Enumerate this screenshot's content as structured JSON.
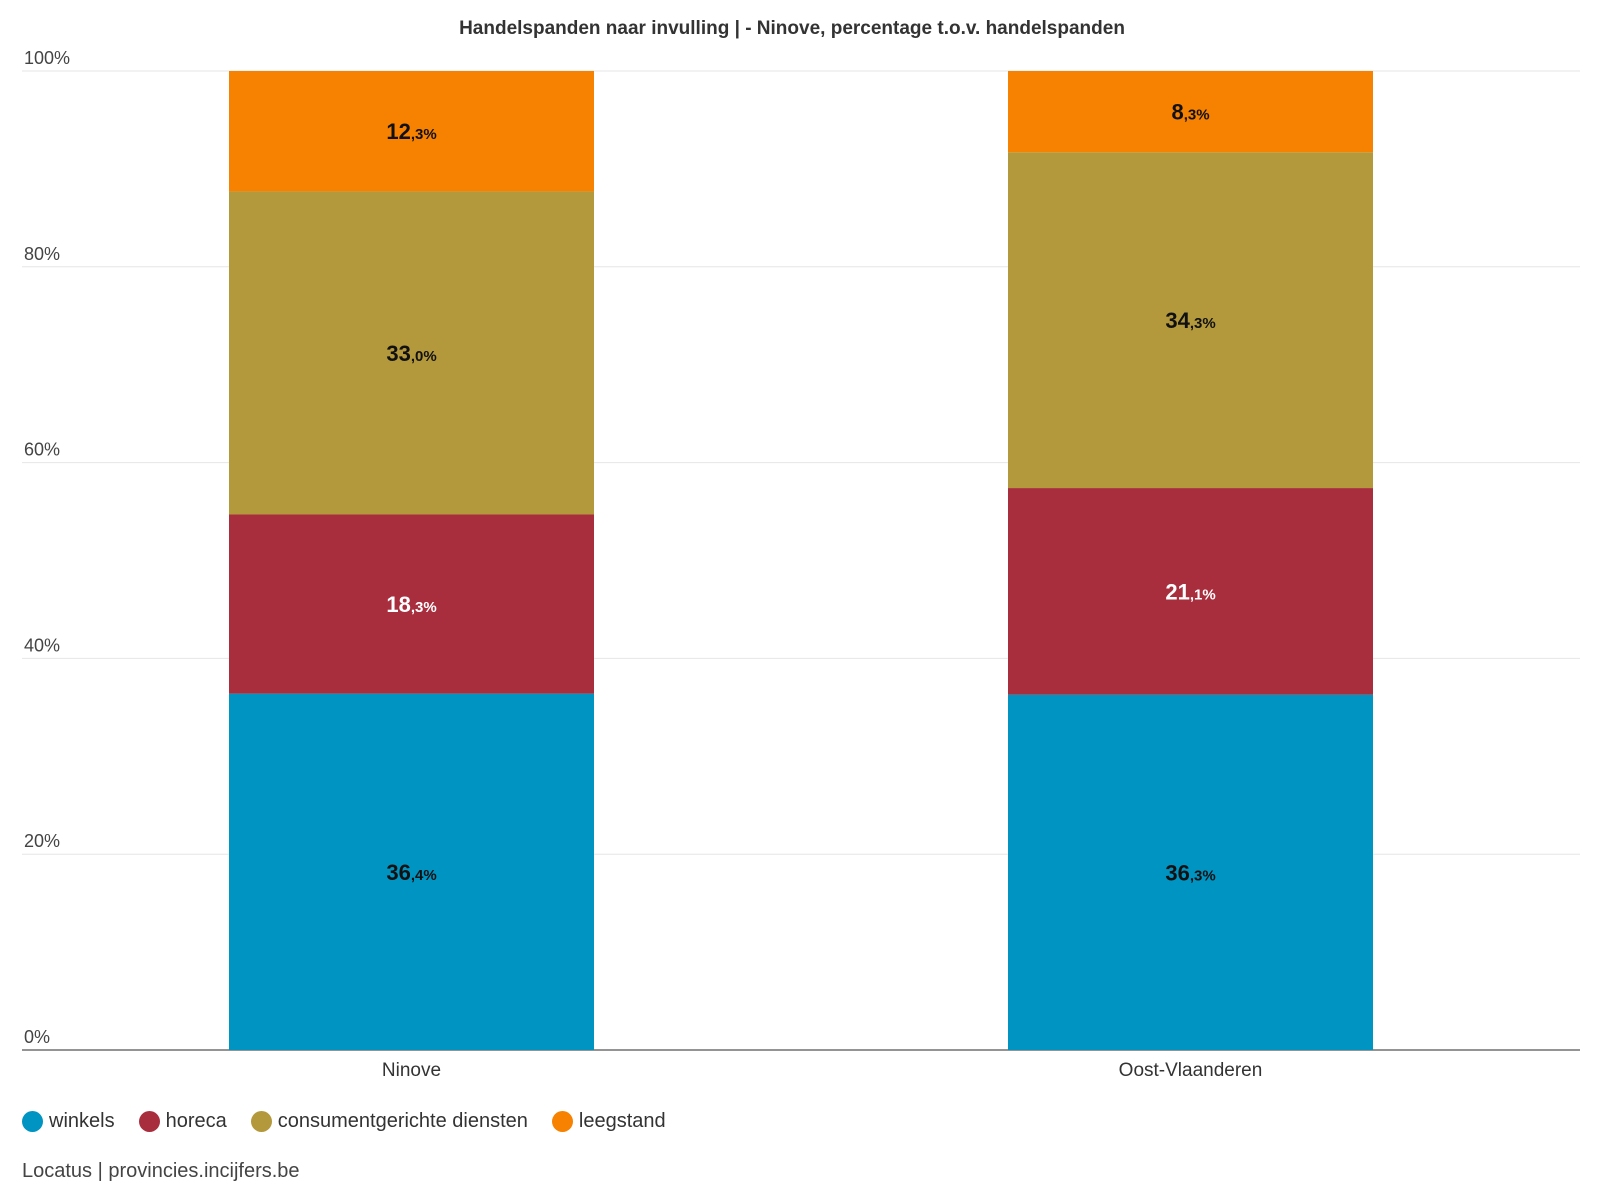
{
  "chart_data": {
    "type": "bar",
    "stacked": true,
    "title": "Handelspanden naar invulling | - Ninove, percentage t.o.v. handelspanden",
    "categories": [
      "Ninove",
      "Oost-Vlaanderen"
    ],
    "ylim": [
      0,
      100
    ],
    "yticks": [
      0,
      20,
      40,
      60,
      80,
      100
    ],
    "ytick_labels": [
      "0%",
      "20%",
      "40%",
      "60%",
      "80%",
      "100%"
    ],
    "series": [
      {
        "name": "winkels",
        "color": "#0094c2",
        "label_color": "#111111",
        "values": [
          36.4,
          36.3
        ],
        "labels": [
          [
            "36",
            ",4%"
          ],
          [
            "36",
            ",3%"
          ]
        ]
      },
      {
        "name": "horeca",
        "color": "#a82e3e",
        "label_color": "#ffffff",
        "values": [
          18.3,
          21.1
        ],
        "labels": [
          [
            "18",
            ",3%"
          ],
          [
            "21",
            ",1%"
          ]
        ]
      },
      {
        "name": "consumentgerichte diensten",
        "color": "#b3993c",
        "label_color": "#111111",
        "values": [
          33.0,
          34.3
        ],
        "labels": [
          [
            "33",
            ",0%"
          ],
          [
            "34",
            ",3%"
          ]
        ]
      },
      {
        "name": "leegstand",
        "color": "#f78100",
        "label_color": "#111111",
        "values": [
          12.3,
          8.3
        ],
        "labels": [
          [
            "12",
            ",3%"
          ],
          [
            "8",
            ",3%"
          ]
        ]
      }
    ],
    "legend": "bottom-left"
  },
  "source": "Locatus | provincies.incijfers.be"
}
